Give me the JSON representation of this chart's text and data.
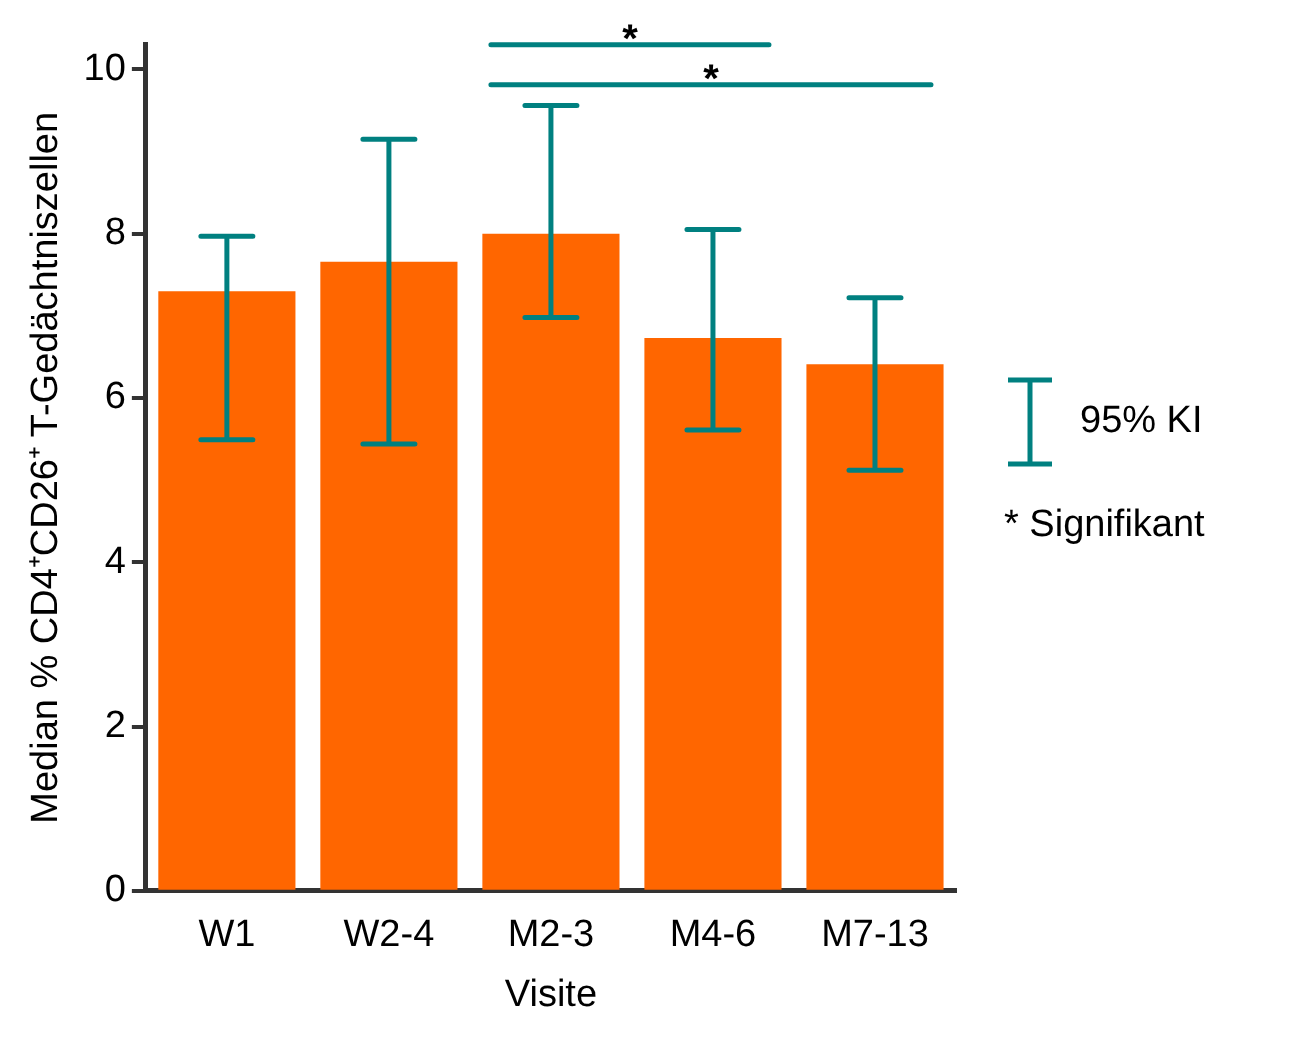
{
  "chart_data": {
    "type": "bar",
    "xlabel": "Visite",
    "ylabel": "Median % CD4⁺CD26⁺ T-Gedächtniszellen",
    "categories": [
      "W1",
      "W2-4",
      "M2-3",
      "M4-6",
      "M7-13"
    ],
    "values": [
      7.3,
      7.66,
      8.0,
      6.73,
      6.41
    ],
    "errors": [
      [
        5.49,
        7.97
      ],
      [
        5.44,
        9.15
      ],
      [
        6.98,
        9.56
      ],
      [
        5.61,
        8.05
      ],
      [
        5.12,
        7.22
      ]
    ],
    "color": "#ff6600",
    "ylim": [
      0,
      10.3
    ],
    "yticks": [
      0,
      2,
      4,
      6,
      8,
      10
    ],
    "grid": false,
    "legend": false,
    "annotations": [
      "*",
      "*",
      "95% KI",
      "* Signifikant"
    ]
  }
}
